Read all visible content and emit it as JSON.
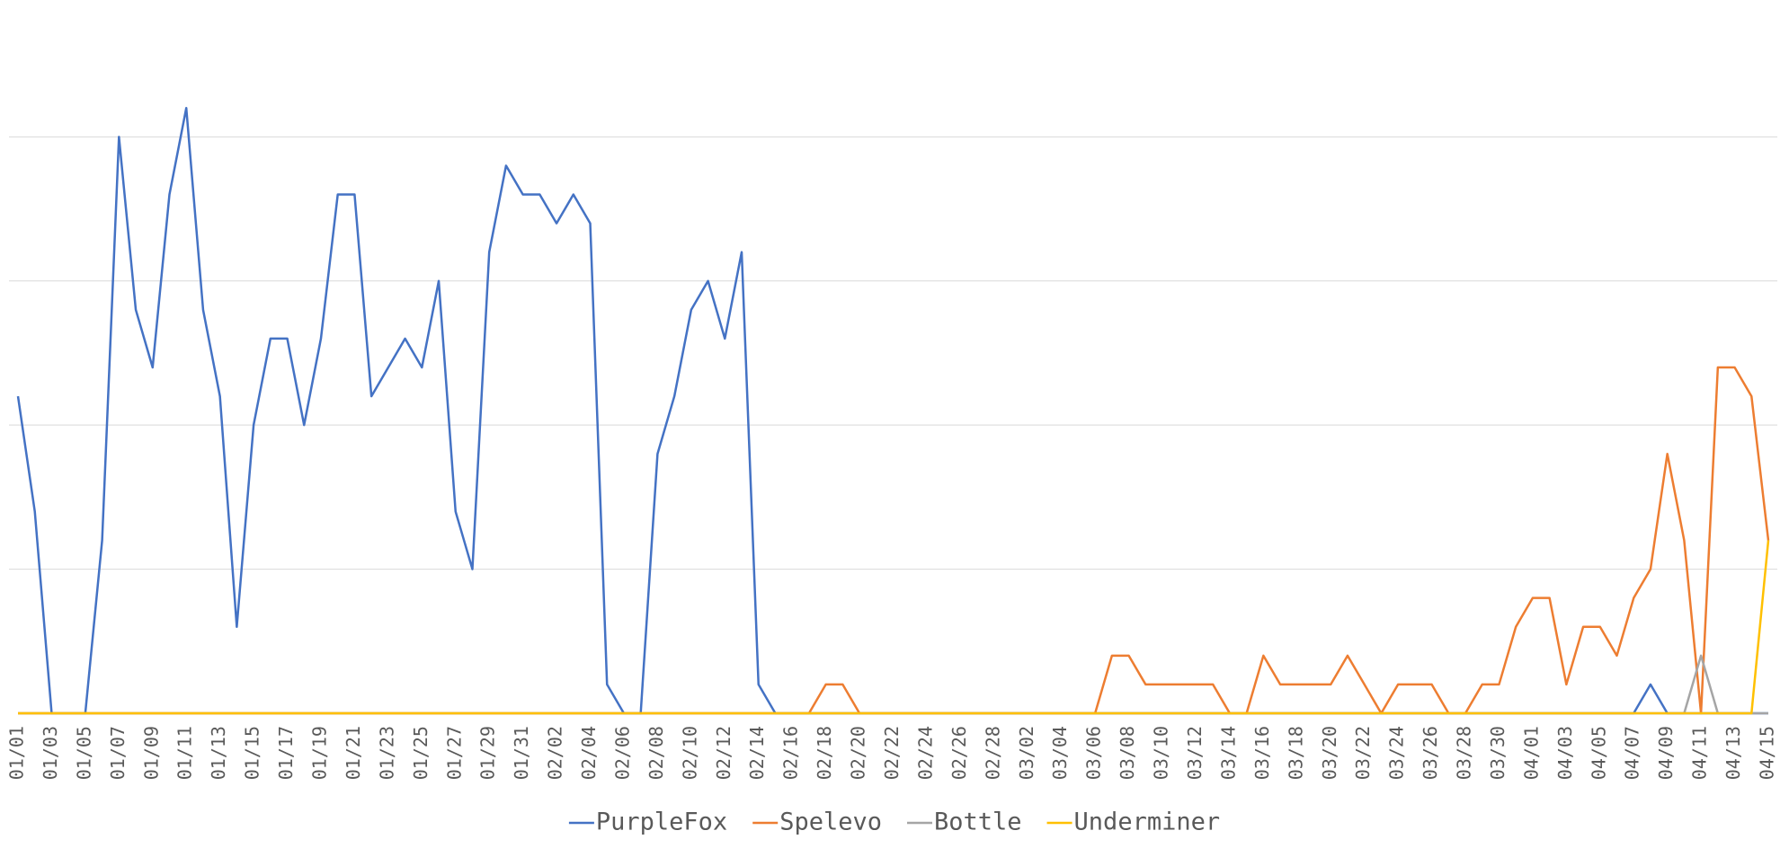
{
  "chart_data": {
    "type": "line",
    "categories": [
      "01/01",
      null,
      "01/03",
      null,
      "01/05",
      null,
      "01/07",
      null,
      "01/09",
      null,
      "01/11",
      null,
      "01/13",
      null,
      "01/15",
      null,
      "01/17",
      null,
      "01/19",
      null,
      "01/21",
      null,
      "01/23",
      null,
      "01/25",
      null,
      "01/27",
      null,
      "01/29",
      null,
      "01/31",
      null,
      "02/02",
      null,
      "02/04",
      null,
      "02/06",
      null,
      "02/08",
      null,
      "02/10",
      null,
      "02/12",
      null,
      "02/14",
      null,
      "02/16",
      null,
      "02/18",
      null,
      "02/20",
      null,
      "02/22",
      null,
      "02/24",
      null,
      "02/26",
      null,
      "02/28",
      null,
      "03/02",
      null,
      "03/04",
      null,
      "03/06",
      null,
      "03/08",
      null,
      "03/10",
      null,
      "03/12",
      null,
      "03/14",
      null,
      "03/16",
      null,
      "03/18",
      null,
      "03/20",
      null,
      "03/22",
      null,
      "03/24",
      null,
      "03/26",
      null,
      "03/28",
      null,
      "03/30",
      null,
      "04/01",
      null,
      "04/03",
      null,
      "04/05",
      null,
      "04/07",
      null,
      "04/09",
      null,
      "04/11",
      null,
      "04/13",
      null,
      "04/15"
    ],
    "series": [
      {
        "name": "PurpleFox",
        "color": "#4472c4",
        "values": [
          11,
          7,
          0,
          0,
          0,
          6,
          20,
          14,
          12,
          18,
          21,
          14,
          11,
          3,
          10,
          13,
          13,
          10,
          13,
          18,
          18,
          11,
          12,
          13,
          12,
          15,
          7,
          5,
          16,
          19,
          18,
          18,
          17,
          18,
          17,
          1,
          0,
          0,
          9,
          11,
          14,
          15,
          13,
          16,
          1,
          0,
          0,
          0,
          0,
          0,
          0,
          0,
          0,
          0,
          0,
          0,
          0,
          0,
          0,
          0,
          0,
          0,
          0,
          0,
          0,
          0,
          0,
          0,
          0,
          0,
          0,
          0,
          0,
          0,
          0,
          0,
          0,
          0,
          0,
          0,
          0,
          0,
          0,
          0,
          0,
          0,
          0,
          0,
          0,
          0,
          0,
          0,
          0,
          0,
          0,
          0,
          0,
          1,
          0,
          0,
          0,
          0,
          0,
          0,
          0
        ]
      },
      {
        "name": "Spelevo",
        "color": "#ed7d31",
        "values": [
          0,
          0,
          0,
          0,
          0,
          0,
          0,
          0,
          0,
          0,
          0,
          0,
          0,
          0,
          0,
          0,
          0,
          0,
          0,
          0,
          0,
          0,
          0,
          0,
          0,
          0,
          0,
          0,
          0,
          0,
          0,
          0,
          0,
          0,
          0,
          0,
          0,
          0,
          0,
          0,
          0,
          0,
          0,
          0,
          0,
          0,
          0,
          0,
          1,
          1,
          0,
          0,
          0,
          0,
          0,
          0,
          0,
          0,
          0,
          0,
          0,
          0,
          0,
          0,
          0,
          2,
          2,
          1,
          1,
          1,
          1,
          1,
          0,
          0,
          2,
          1,
          1,
          1,
          1,
          2,
          1,
          0,
          1,
          1,
          1,
          0,
          0,
          1,
          1,
          3,
          4,
          4,
          1,
          3,
          3,
          2,
          4,
          5,
          9,
          6,
          0,
          12,
          12,
          11,
          6
        ]
      },
      {
        "name": "Bottle",
        "color": "#a5a5a5",
        "values": [
          0,
          0,
          0,
          0,
          0,
          0,
          0,
          0,
          0,
          0,
          0,
          0,
          0,
          0,
          0,
          0,
          0,
          0,
          0,
          0,
          0,
          0,
          0,
          0,
          0,
          0,
          0,
          0,
          0,
          0,
          0,
          0,
          0,
          0,
          0,
          0,
          0,
          0,
          0,
          0,
          0,
          0,
          0,
          0,
          0,
          0,
          0,
          0,
          0,
          0,
          0,
          0,
          0,
          0,
          0,
          0,
          0,
          0,
          0,
          0,
          0,
          0,
          0,
          0,
          0,
          0,
          0,
          0,
          0,
          0,
          0,
          0,
          0,
          0,
          0,
          0,
          0,
          0,
          0,
          0,
          0,
          0,
          0,
          0,
          0,
          0,
          0,
          0,
          0,
          0,
          0,
          0,
          0,
          0,
          0,
          0,
          0,
          0,
          0,
          0,
          2,
          0,
          0,
          0,
          0
        ]
      },
      {
        "name": "Underminer",
        "color": "#ffc000",
        "values": [
          0,
          0,
          0,
          0,
          0,
          0,
          0,
          0,
          0,
          0,
          0,
          0,
          0,
          0,
          0,
          0,
          0,
          0,
          0,
          0,
          0,
          0,
          0,
          0,
          0,
          0,
          0,
          0,
          0,
          0,
          0,
          0,
          0,
          0,
          0,
          0,
          0,
          0,
          0,
          0,
          0,
          0,
          0,
          0,
          0,
          0,
          0,
          0,
          0,
          0,
          0,
          0,
          0,
          0,
          0,
          0,
          0,
          0,
          0,
          0,
          0,
          0,
          0,
          0,
          0,
          0,
          0,
          0,
          0,
          0,
          0,
          0,
          0,
          0,
          0,
          0,
          0,
          0,
          0,
          0,
          0,
          0,
          0,
          0,
          0,
          0,
          0,
          0,
          0,
          0,
          0,
          0,
          0,
          0,
          0,
          0,
          0,
          0,
          0,
          0,
          0,
          0,
          0,
          0,
          6
        ]
      }
    ],
    "ylim": [
      0,
      24
    ],
    "yticks": [
      5,
      10,
      15,
      20
    ],
    "grid": true,
    "legend": "bottom"
  }
}
